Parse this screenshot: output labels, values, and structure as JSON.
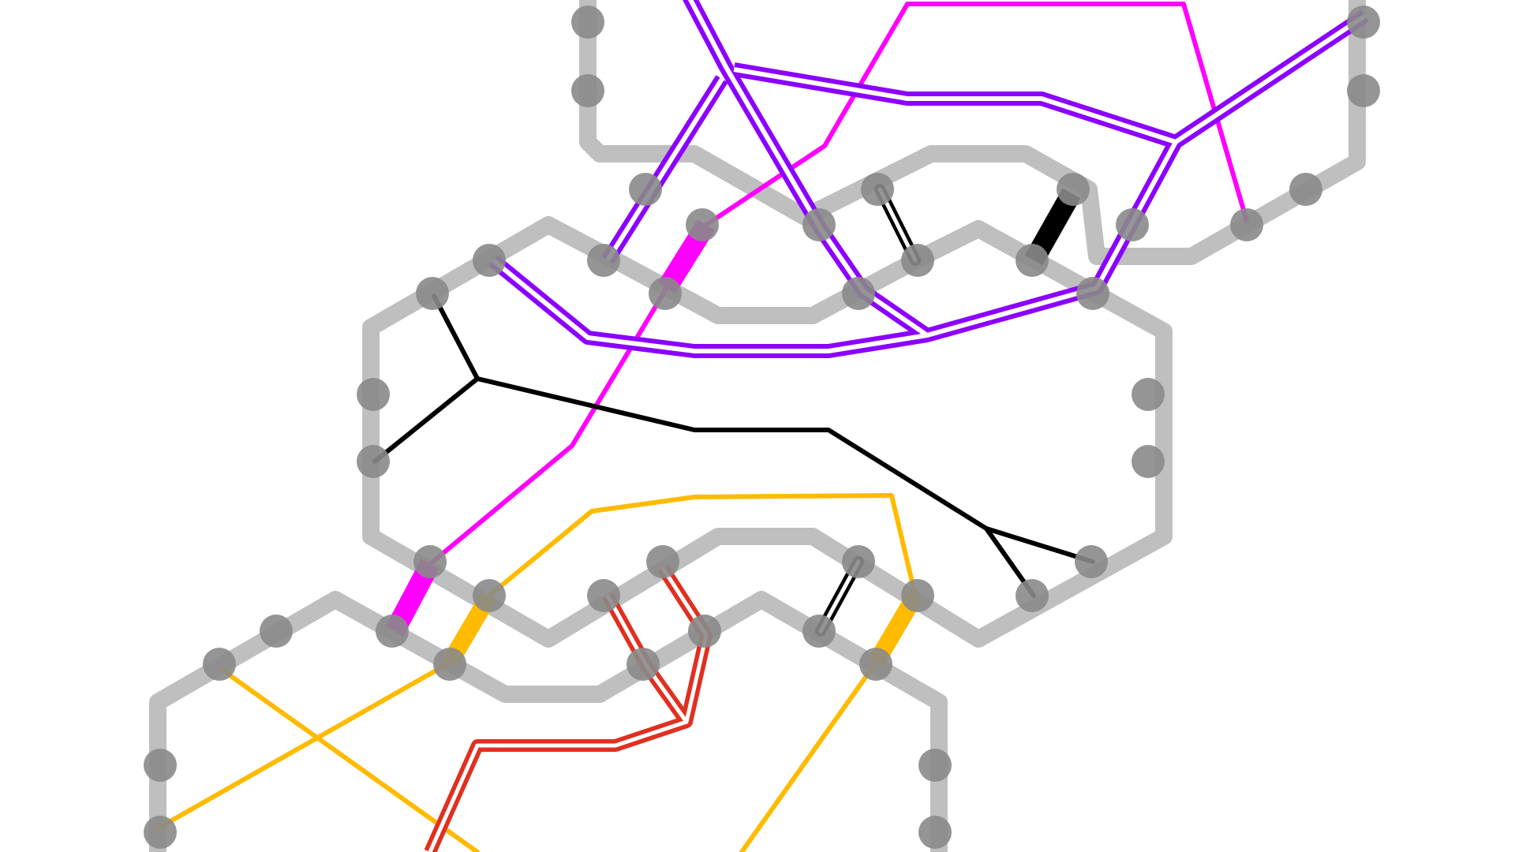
{
  "game": {
    "name": "",
    "colors": {
      "background": "#ffffff",
      "tile_fill": "#dedede",
      "tile_border": "#bfbfbf",
      "port": "#8a8a8a",
      "purple": "#8b00ff",
      "magenta": "#ff00ff",
      "black": "#000000",
      "yellow": "#ffbb00",
      "red": "#e03020"
    },
    "tiles": [
      "tile-top-right",
      "tile-middle",
      "tile-bottom-left"
    ],
    "paths": [
      {
        "name": "purple-path",
        "color": "purple",
        "style": "highlighted"
      },
      {
        "name": "magenta-path",
        "color": "magenta",
        "style": "plain"
      },
      {
        "name": "black-path",
        "color": "black",
        "style": "plain"
      },
      {
        "name": "yellow-path",
        "color": "yellow",
        "style": "plain"
      },
      {
        "name": "red-path",
        "color": "red",
        "style": "highlighted"
      }
    ]
  }
}
